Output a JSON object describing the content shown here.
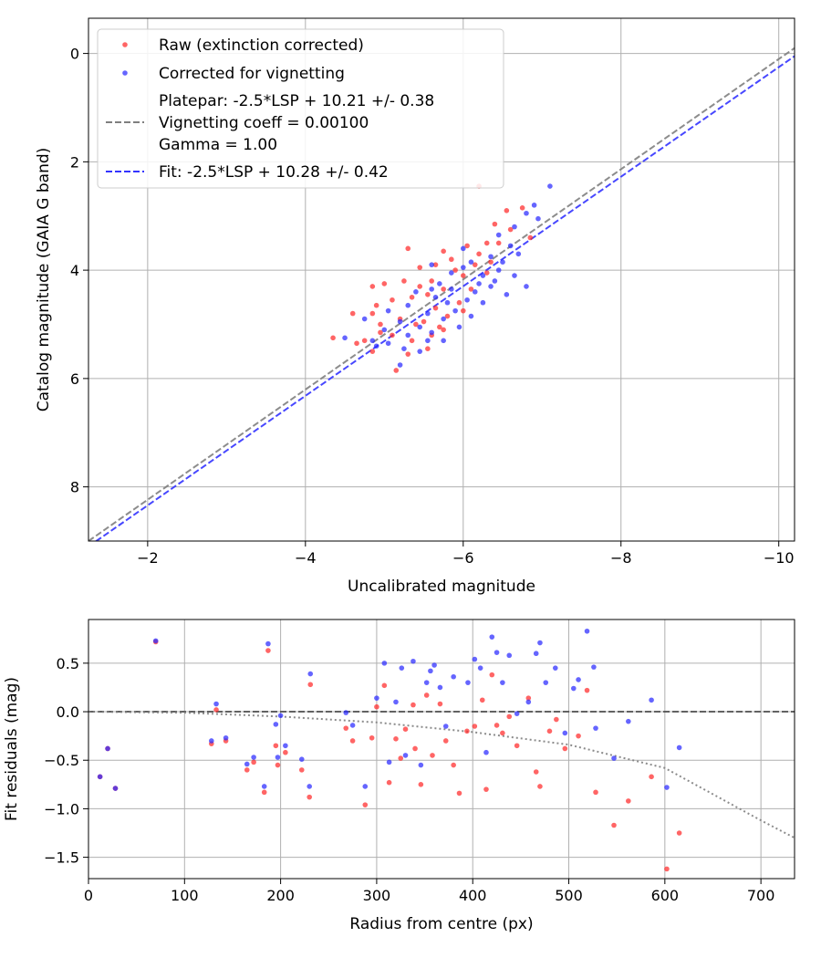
{
  "chart_data": [
    {
      "type": "scatter",
      "title": "",
      "xlabel": "Uncalibrated magnitude",
      "ylabel": "Catalog magnitude (GAIA G band)",
      "xlim": [
        -1.25,
        -10.2
      ],
      "ylim": [
        9.0,
        -0.65
      ],
      "x_inverted": true,
      "y_inverted": true,
      "grid": true,
      "legend_placement": "top-left",
      "xticks": [
        -2,
        -4,
        -6,
        -8,
        -10
      ],
      "xtick_labels": [
        "−2",
        "−4",
        "−6",
        "−8",
        "−10"
      ],
      "yticks": [
        0,
        2,
        4,
        6,
        8
      ],
      "ytick_labels": [
        "0",
        "2",
        "4",
        "6",
        "8"
      ],
      "legend": [
        {
          "label": "Raw (extinction corrected)",
          "marker": "dot",
          "color": "#ff2a2a"
        },
        {
          "label": "Corrected for vignetting",
          "marker": "dot",
          "color": "#2a2aff"
        },
        {
          "label": "Platepar: -2.5*LSP + 10.21 +/- 0.38",
          "label_line2": "Vignetting coeff = 0.00100",
          "label_line3": "Gamma = 1.00",
          "marker": "dash",
          "color": "#7f7f7f"
        },
        {
          "label": "Fit: -2.5*LSP + 10.28 +/- 0.42",
          "marker": "dash",
          "color": "#3333ff"
        }
      ],
      "lines": [
        {
          "name": "Platepar: -2.5*LSP + 10.21 +/- 0.38",
          "style": "dashed",
          "color": "#7f7f7f",
          "x": [
            -1.25,
            -10.2
          ],
          "y": [
            9.0,
            -0.1
          ]
        },
        {
          "name": "Fit: -2.5*LSP + 10.28 +/- 0.42",
          "style": "dashed",
          "color": "#3333ff",
          "x": [
            -1.25,
            -10.2
          ],
          "y": [
            9.1,
            0.05
          ]
        }
      ],
      "series": [
        {
          "name": "Raw (extinction corrected)",
          "color": "#ff2a2a",
          "points": [
            [
              -6.2,
              2.45
            ],
            [
              -6.55,
              2.9
            ],
            [
              -6.75,
              2.85
            ],
            [
              -6.4,
              3.15
            ],
            [
              -6.6,
              3.25
            ],
            [
              -6.85,
              3.4
            ],
            [
              -6.3,
              3.5
            ],
            [
              -6.05,
              3.55
            ],
            [
              -5.75,
              3.65
            ],
            [
              -5.3,
              3.6
            ],
            [
              -5.85,
              3.8
            ],
            [
              -6.45,
              3.5
            ],
            [
              -6.2,
              3.7
            ],
            [
              -5.65,
              3.9
            ],
            [
              -5.45,
              3.95
            ],
            [
              -5.9,
              4.0
            ],
            [
              -6.0,
              4.1
            ],
            [
              -5.6,
              4.2
            ],
            [
              -5.25,
              4.2
            ],
            [
              -5.0,
              4.25
            ],
            [
              -4.85,
              4.3
            ],
            [
              -5.45,
              4.3
            ],
            [
              -5.75,
              4.35
            ],
            [
              -6.1,
              4.35
            ],
            [
              -5.55,
              4.45
            ],
            [
              -5.35,
              4.5
            ],
            [
              -5.1,
              4.55
            ],
            [
              -4.9,
              4.65
            ],
            [
              -5.65,
              4.7
            ],
            [
              -6.0,
              4.75
            ],
            [
              -4.6,
              4.8
            ],
            [
              -4.85,
              4.8
            ],
            [
              -5.2,
              4.9
            ],
            [
              -5.5,
              4.95
            ],
            [
              -5.8,
              4.85
            ],
            [
              -4.95,
              5.0
            ],
            [
              -5.1,
              5.2
            ],
            [
              -5.35,
              5.3
            ],
            [
              -4.35,
              5.25
            ],
            [
              -4.65,
              5.35
            ],
            [
              -4.75,
              5.3
            ],
            [
              -5.55,
              5.45
            ],
            [
              -4.85,
              5.5
            ],
            [
              -5.3,
              5.55
            ],
            [
              -5.15,
              5.85
            ],
            [
              -5.6,
              5.2
            ],
            [
              -5.75,
              5.1
            ],
            [
              -6.3,
              4.05
            ],
            [
              -6.15,
              3.9
            ],
            [
              -5.95,
              4.6
            ],
            [
              -6.35,
              3.85
            ],
            [
              -5.4,
              5.0
            ],
            [
              -4.95,
              5.15
            ],
            [
              -5.7,
              5.05
            ]
          ]
        },
        {
          "name": "Corrected for vignetting",
          "color": "#2a2aff",
          "points": [
            [
              -7.1,
              2.45
            ],
            [
              -6.9,
              2.8
            ],
            [
              -6.8,
              2.95
            ],
            [
              -6.65,
              3.2
            ],
            [
              -6.95,
              3.05
            ],
            [
              -6.45,
              3.35
            ],
            [
              -6.6,
              3.55
            ],
            [
              -6.0,
              3.6
            ],
            [
              -6.35,
              3.75
            ],
            [
              -6.1,
              3.85
            ],
            [
              -5.6,
              3.9
            ],
            [
              -5.85,
              4.05
            ],
            [
              -6.25,
              4.1
            ],
            [
              -6.45,
              4.0
            ],
            [
              -6.65,
              4.1
            ],
            [
              -6.2,
              4.25
            ],
            [
              -6.35,
              4.3
            ],
            [
              -6.55,
              4.45
            ],
            [
              -6.05,
              4.55
            ],
            [
              -5.8,
              4.6
            ],
            [
              -5.9,
              4.75
            ],
            [
              -6.1,
              4.85
            ],
            [
              -5.4,
              4.4
            ],
            [
              -5.65,
              4.5
            ],
            [
              -5.3,
              4.65
            ],
            [
              -5.55,
              4.8
            ],
            [
              -5.75,
              4.9
            ],
            [
              -5.95,
              5.05
            ],
            [
              -5.05,
              4.75
            ],
            [
              -5.2,
              4.95
            ],
            [
              -5.45,
              5.05
            ],
            [
              -4.75,
              4.9
            ],
            [
              -5.0,
              5.1
            ],
            [
              -5.3,
              5.2
            ],
            [
              -5.55,
              5.3
            ],
            [
              -5.75,
              5.3
            ],
            [
              -4.85,
              5.3
            ],
            [
              -5.05,
              5.35
            ],
            [
              -4.5,
              5.25
            ],
            [
              -5.25,
              5.45
            ],
            [
              -5.45,
              5.5
            ],
            [
              -4.9,
              5.4
            ],
            [
              -5.2,
              5.75
            ],
            [
              -5.6,
              5.15
            ],
            [
              -6.15,
              4.4
            ],
            [
              -6.5,
              3.85
            ],
            [
              -6.0,
              3.95
            ],
            [
              -5.7,
              4.25
            ],
            [
              -5.85,
              4.35
            ],
            [
              -6.25,
              4.6
            ],
            [
              -5.6,
              4.35
            ],
            [
              -6.4,
              4.2
            ],
            [
              -6.8,
              4.3
            ],
            [
              -6.7,
              3.7
            ]
          ]
        }
      ]
    },
    {
      "type": "scatter",
      "title": "",
      "xlabel": "Radius from centre (px)",
      "ylabel": "Fit residuals (mag)",
      "xlim": [
        0,
        735
      ],
      "ylim": [
        -1.72,
        0.95
      ],
      "grid": true,
      "xticks": [
        0,
        100,
        200,
        300,
        400,
        500,
        600,
        700
      ],
      "xtick_labels": [
        "0",
        "100",
        "200",
        "300",
        "400",
        "500",
        "600",
        "700"
      ],
      "yticks": [
        0.5,
        0.0,
        -0.5,
        -1.0,
        -1.5
      ],
      "ytick_labels": [
        "0.5",
        "0.0",
        "−0.5",
        "−1.0",
        "−1.5"
      ],
      "lines": [
        {
          "name": "zero",
          "style": "dashed",
          "color": "#555555",
          "x": [
            0,
            735
          ],
          "y": [
            0,
            0
          ]
        },
        {
          "name": "vignetting",
          "style": "dotted",
          "color": "#7f7f7f",
          "x": [
            0,
            100,
            200,
            300,
            400,
            500,
            600,
            700,
            735
          ],
          "y": [
            0,
            -0.01,
            -0.05,
            -0.11,
            -0.21,
            -0.34,
            -0.58,
            -1.12,
            -1.3
          ]
        }
      ],
      "series": [
        {
          "name": "Raw (extinction corrected)",
          "color": "#ff2a2a",
          "points": [
            [
              12,
              -0.67
            ],
            [
              20,
              -0.38
            ],
            [
              28,
              -0.79
            ],
            [
              70,
              0.72
            ],
            [
              128,
              -0.33
            ],
            [
              133,
              0.02
            ],
            [
              143,
              -0.3
            ],
            [
              165,
              -0.6
            ],
            [
              172,
              -0.52
            ],
            [
              183,
              -0.83
            ],
            [
              187,
              0.63
            ],
            [
              195,
              -0.35
            ],
            [
              197,
              -0.55
            ],
            [
              205,
              -0.42
            ],
            [
              222,
              -0.6
            ],
            [
              230,
              -0.88
            ],
            [
              231,
              0.28
            ],
            [
              268,
              -0.17
            ],
            [
              275,
              -0.3
            ],
            [
              288,
              -0.96
            ],
            [
              295,
              -0.27
            ],
            [
              300,
              0.05
            ],
            [
              308,
              0.27
            ],
            [
              313,
              -0.73
            ],
            [
              320,
              -0.28
            ],
            [
              325,
              -0.48
            ],
            [
              330,
              -0.18
            ],
            [
              338,
              0.07
            ],
            [
              340,
              -0.38
            ],
            [
              346,
              -0.75
            ],
            [
              352,
              0.17
            ],
            [
              358,
              -0.45
            ],
            [
              366,
              0.08
            ],
            [
              372,
              -0.3
            ],
            [
              380,
              -0.55
            ],
            [
              386,
              -0.84
            ],
            [
              394,
              -0.2
            ],
            [
              402,
              -0.15
            ],
            [
              410,
              0.12
            ],
            [
              414,
              -0.8
            ],
            [
              420,
              0.38
            ],
            [
              425,
              -0.14
            ],
            [
              431,
              -0.22
            ],
            [
              438,
              -0.05
            ],
            [
              446,
              -0.35
            ],
            [
              458,
              0.14
            ],
            [
              466,
              -0.62
            ],
            [
              470,
              -0.77
            ],
            [
              480,
              -0.2
            ],
            [
              487,
              -0.08
            ],
            [
              496,
              -0.38
            ],
            [
              510,
              -0.25
            ],
            [
              519,
              0.22
            ],
            [
              528,
              -0.83
            ],
            [
              547,
              -1.17
            ],
            [
              562,
              -0.92
            ],
            [
              586,
              -0.67
            ],
            [
              602,
              -1.62
            ],
            [
              615,
              -1.25
            ]
          ]
        },
        {
          "name": "Corrected for vignetting",
          "color": "#2a2aff",
          "points": [
            [
              12,
              -0.67
            ],
            [
              20,
              -0.38
            ],
            [
              28,
              -0.79
            ],
            [
              70,
              0.73
            ],
            [
              128,
              -0.3
            ],
            [
              133,
              0.08
            ],
            [
              143,
              -0.27
            ],
            [
              165,
              -0.54
            ],
            [
              172,
              -0.47
            ],
            [
              183,
              -0.77
            ],
            [
              187,
              0.7
            ],
            [
              195,
              -0.13
            ],
            [
              197,
              -0.47
            ],
            [
              200,
              -0.04
            ],
            [
              205,
              -0.35
            ],
            [
              222,
              -0.49
            ],
            [
              230,
              -0.77
            ],
            [
              231,
              0.39
            ],
            [
              268,
              -0.01
            ],
            [
              275,
              -0.14
            ],
            [
              288,
              -0.77
            ],
            [
              300,
              0.14
            ],
            [
              308,
              0.5
            ],
            [
              313,
              -0.52
            ],
            [
              320,
              0.1
            ],
            [
              326,
              0.45
            ],
            [
              330,
              -0.45
            ],
            [
              338,
              0.52
            ],
            [
              346,
              -0.55
            ],
            [
              352,
              0.3
            ],
            [
              356,
              0.42
            ],
            [
              360,
              0.48
            ],
            [
              366,
              0.25
            ],
            [
              372,
              -0.15
            ],
            [
              380,
              0.36
            ],
            [
              395,
              0.3
            ],
            [
              402,
              0.54
            ],
            [
              408,
              0.45
            ],
            [
              414,
              -0.42
            ],
            [
              420,
              0.77
            ],
            [
              425,
              0.61
            ],
            [
              431,
              0.3
            ],
            [
              438,
              0.58
            ],
            [
              446,
              -0.02
            ],
            [
              458,
              0.1
            ],
            [
              466,
              0.6
            ],
            [
              470,
              0.71
            ],
            [
              476,
              0.3
            ],
            [
              486,
              0.45
            ],
            [
              496,
              -0.22
            ],
            [
              505,
              0.24
            ],
            [
              510,
              0.33
            ],
            [
              519,
              0.83
            ],
            [
              526,
              0.46
            ],
            [
              528,
              -0.17
            ],
            [
              547,
              -0.48
            ],
            [
              562,
              -0.1
            ],
            [
              586,
              0.12
            ],
            [
              602,
              -0.78
            ],
            [
              615,
              -0.37
            ]
          ]
        }
      ]
    }
  ]
}
